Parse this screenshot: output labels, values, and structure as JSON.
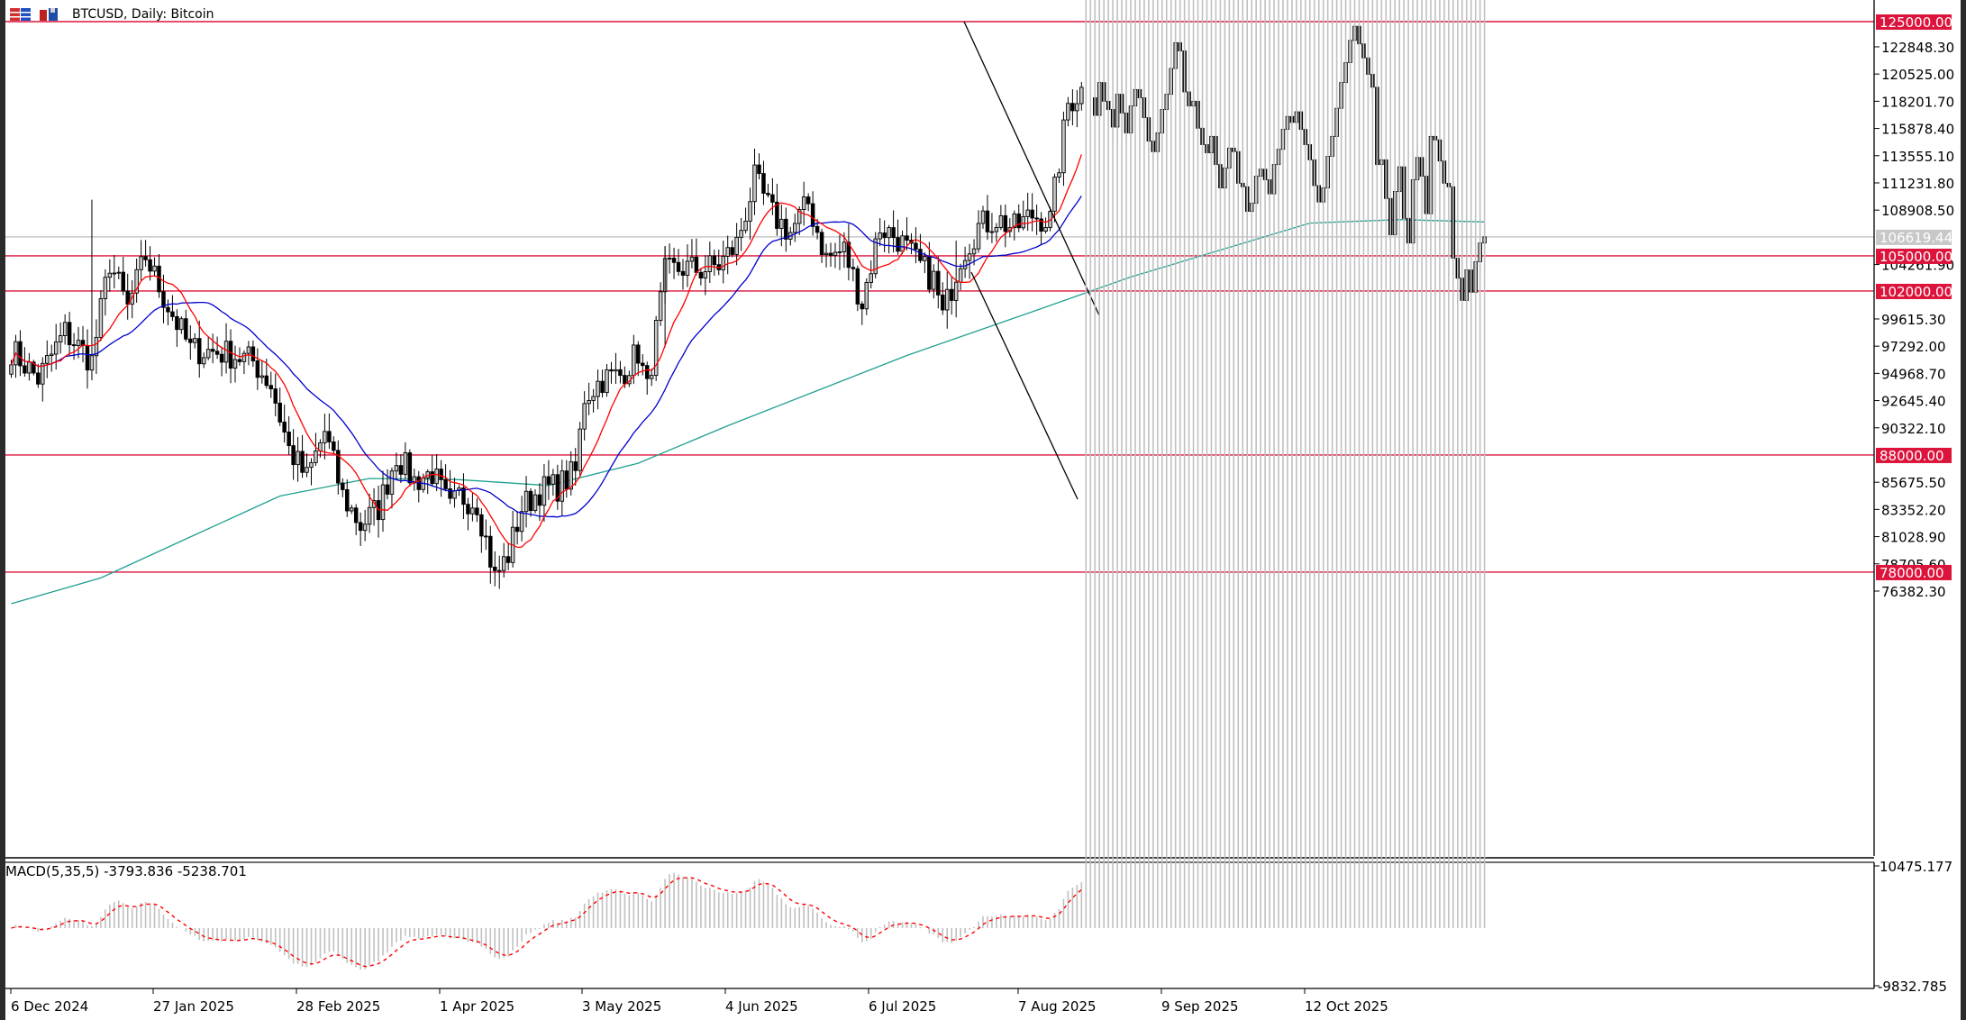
{
  "window": {
    "title": "BTCUSD, Daily:  Bitcoin",
    "symbol": "BTCUSD",
    "timeframe": "Daily",
    "description": "Bitcoin"
  },
  "toolbar_icons": [
    {
      "name": "chart-list-icon",
      "colors": [
        "#d03030",
        "#2050c0"
      ]
    },
    {
      "name": "chart-save-icon",
      "colors": [
        "#c02020",
        "#1c4ea8"
      ]
    }
  ],
  "price_axis": {
    "labels": [
      "122848.30",
      "120525.00",
      "118201.70",
      "115878.40",
      "113555.10",
      "111231.80",
      "108908.50",
      "104261.90",
      "99615.30",
      "97292.00",
      "94968.70",
      "92645.40",
      "90322.10",
      "85675.50",
      "83352.20",
      "81028.90",
      "78705.60",
      "76382.30"
    ],
    "current_price": "106619.44",
    "current_price_color": "#c8c8c8"
  },
  "horizontal_levels": [
    {
      "label": "125000.00",
      "value": 125000,
      "color": "#dc143c"
    },
    {
      "label": "105000.00",
      "value": 105000,
      "color": "#dc143c"
    },
    {
      "label": "102000.00",
      "value": 102000,
      "color": "#dc143c"
    },
    {
      "label": "88000.00",
      "value": 88000,
      "color": "#dc143c"
    },
    {
      "label": "78000.00",
      "value": 78000,
      "color": "#dc143c"
    }
  ],
  "time_axis": {
    "labels": [
      "6 Dec 2024",
      "27 Jan 2025",
      "28 Feb 2025",
      "1 Apr 2025",
      "3 May 2025",
      "4 Jun 2025",
      "6 Jul 2025",
      "7 Aug 2025",
      "9 Sep 2025",
      "12 Oct 2025"
    ]
  },
  "indicators": {
    "ma_fast_color": "#ff0000",
    "ma_mid_color": "#0000cd",
    "ma_slow_color": "#20a090",
    "trendline_color": "#000000"
  },
  "macd": {
    "label": "MACD(5,35,5) -3793.836 -5238.701",
    "params": "5,35,5",
    "main_value": "-3793.836",
    "signal_value": "-5238.701",
    "axis_max": "10475.177",
    "axis_min": "-9832.785",
    "histogram_color": "#c0c0c0",
    "signal_color": "#ff0000"
  },
  "chart_data": {
    "type": "candlestick",
    "title": "BTCUSD, Daily: Bitcoin",
    "ylim": [
      75000,
      126500
    ],
    "x_range": [
      "2024-12-06",
      "2025-11-05"
    ],
    "levels": [
      125000,
      105000,
      102000,
      88000,
      78000
    ],
    "current_price": 106619.44,
    "close_waypoints": [
      [
        0,
        97000
      ],
      [
        6,
        94500
      ],
      [
        12,
        98500
      ],
      [
        18,
        96000
      ],
      [
        22,
        104500
      ],
      [
        26,
        100500
      ],
      [
        30,
        105000
      ],
      [
        34,
        101500
      ],
      [
        40,
        97000
      ],
      [
        46,
        96800
      ],
      [
        50,
        96500
      ],
      [
        54,
        96000
      ],
      [
        58,
        94000
      ],
      [
        62,
        88500
      ],
      [
        66,
        86000
      ],
      [
        70,
        90000
      ],
      [
        74,
        84500
      ],
      [
        78,
        82000
      ],
      [
        82,
        83500
      ],
      [
        86,
        88000
      ],
      [
        90,
        85800
      ],
      [
        94,
        86500
      ],
      [
        98,
        83300
      ],
      [
        100,
        84500
      ],
      [
        104,
        84000
      ],
      [
        108,
        77500
      ],
      [
        111,
        79500
      ],
      [
        114,
        83500
      ],
      [
        118,
        85000
      ],
      [
        122,
        85300
      ],
      [
        126,
        86500
      ],
      [
        128,
        93000
      ],
      [
        132,
        94500
      ],
      [
        136,
        94800
      ],
      [
        140,
        96800
      ],
      [
        142,
        93500
      ],
      [
        146,
        103500
      ],
      [
        150,
        104000
      ],
      [
        154,
        103800
      ],
      [
        158,
        104200
      ],
      [
        162,
        106000
      ],
      [
        166,
        111500
      ],
      [
        170,
        108500
      ],
      [
        174,
        107000
      ],
      [
        178,
        109500
      ],
      [
        182,
        104800
      ],
      [
        186,
        105500
      ],
      [
        190,
        101000
      ],
      [
        194,
        107500
      ],
      [
        198,
        106500
      ],
      [
        202,
        104500
      ],
      [
        206,
        103000
      ],
      [
        208,
        99800
      ],
      [
        212,
        105000
      ],
      [
        216,
        107500
      ],
      [
        220,
        108200
      ],
      [
        224,
        107300
      ],
      [
        228,
        108500
      ],
      [
        232,
        108000
      ],
      [
        236,
        118000
      ],
      [
        240,
        119500
      ]
    ],
    "series": [
      {
        "name": "MA fast (red)",
        "color": "#ff0000"
      },
      {
        "name": "MA mid (blue)",
        "color": "#0000cd"
      },
      {
        "name": "MA slow (teal)",
        "color": "#20a090"
      }
    ],
    "macd": {
      "params": [
        5,
        35,
        5
      ],
      "main": -3793.836,
      "signal": -5238.701,
      "range": [
        -9832.785,
        10475.177
      ]
    }
  }
}
